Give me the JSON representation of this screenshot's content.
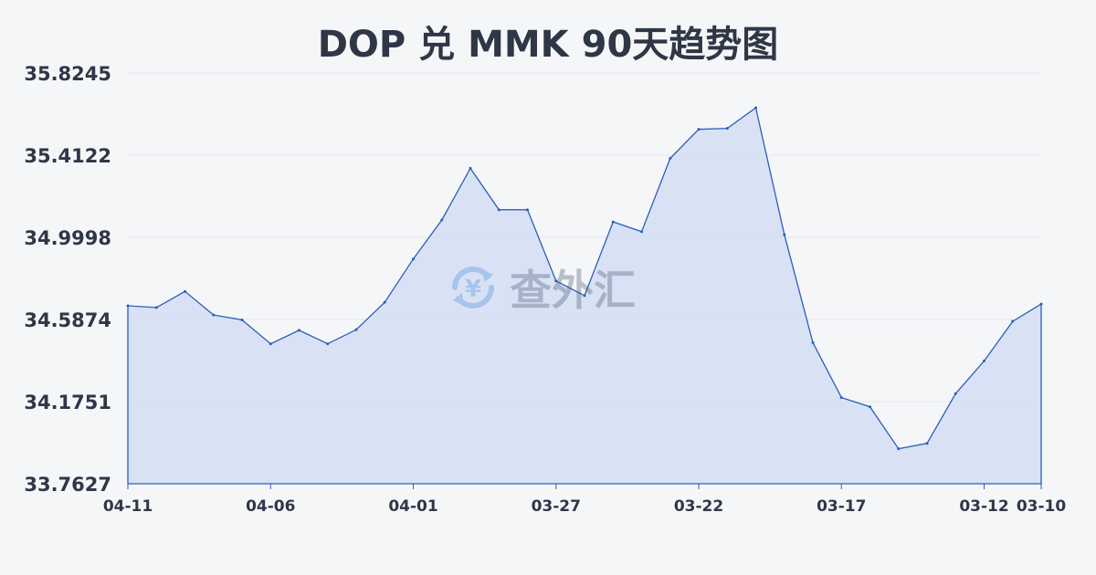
{
  "chart_data": {
    "type": "area",
    "title": "DOP 兑 MMK 90天趋势图",
    "xlabel": "",
    "ylabel": "",
    "ylim": [
      33.7627,
      35.8245
    ],
    "y_ticks": [
      "35.8245",
      "35.4122",
      "34.9998",
      "34.5874",
      "34.1751",
      "33.7627"
    ],
    "x_tick_labels": [
      "04-11",
      "04-06",
      "04-01",
      "03-27",
      "03-22",
      "03-17",
      "03-12",
      "03-10"
    ],
    "grid": true,
    "legend": "none",
    "x": [
      "04-11",
      "04-10",
      "04-09",
      "04-08",
      "04-07",
      "04-06",
      "04-05",
      "04-04",
      "04-03",
      "04-02",
      "04-01",
      "03-31",
      "03-30",
      "03-29",
      "03-28",
      "03-27",
      "03-26",
      "03-25",
      "03-24",
      "03-23",
      "03-22",
      "03-21",
      "03-20",
      "03-19",
      "03-18",
      "03-17",
      "03-16",
      "03-15",
      "03-14",
      "03-13",
      "03-12",
      "03-11",
      "03-10"
    ],
    "values": [
      34.656,
      34.647,
      34.728,
      34.61,
      34.585,
      34.465,
      34.533,
      34.465,
      34.536,
      34.674,
      34.891,
      35.087,
      35.346,
      35.138,
      35.138,
      34.781,
      34.707,
      35.077,
      35.028,
      35.396,
      35.542,
      35.547,
      35.65,
      35.013,
      34.471,
      34.195,
      34.149,
      33.938,
      33.965,
      34.215,
      34.379,
      34.578,
      34.665
    ],
    "line_color": "#2b5fb8",
    "fill_color": "#d3def3"
  },
  "watermark": {
    "text": "查外汇",
    "icon": "yen-exchange-icon",
    "icon_glyph": "¥",
    "color": "#4a8fe0"
  }
}
